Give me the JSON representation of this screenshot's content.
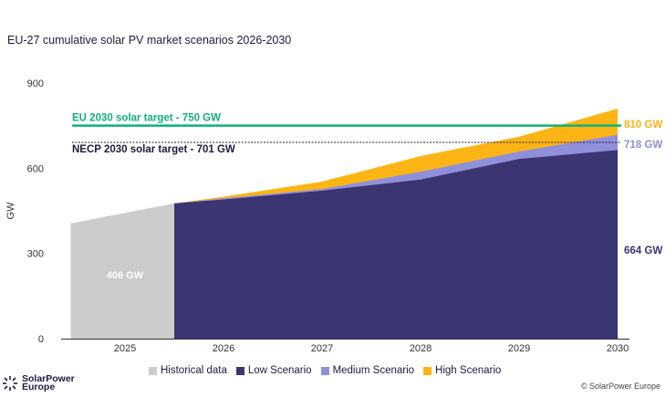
{
  "title": "EU-27 cumulative solar PV market scenarios 2026-2030",
  "chart_data": {
    "type": "area",
    "title": "EU-27 cumulative solar PV market scenarios 2026-2030",
    "ylabel": "GW",
    "xlabel": "",
    "ylim": [
      0,
      900
    ],
    "yticks": [
      "0",
      "300",
      "600",
      "900"
    ],
    "categories": [
      "2025",
      "2026",
      "2027",
      "2028",
      "2029",
      "2030"
    ],
    "grid": false,
    "legend_position": "bottom",
    "historical": {
      "name": "Historical data",
      "x": [
        2024.45,
        2025.5
      ],
      "values": [
        406,
        476
      ],
      "label": "406 GW",
      "color": "#cccccc"
    },
    "scenario_x": [
      2025.5,
      2026,
      2027,
      2028,
      2029,
      2030
    ],
    "series": [
      {
        "name": "Low Scenario",
        "values": [
          476,
          490,
          521,
          560,
          633,
          664
        ],
        "color": "#3b3572",
        "end_label": "664 GW"
      },
      {
        "name": "Medium Scenario",
        "values": [
          476,
          494,
          527,
          588,
          659,
          718
        ],
        "color": "#9090da",
        "end_label": "718 GW"
      },
      {
        "name": "High Scenario",
        "values": [
          476,
          500,
          553,
          643,
          711,
          810
        ],
        "color": "#fdb515",
        "end_label": "810 GW"
      }
    ],
    "reference_lines": [
      {
        "label": "EU 2030 solar target - 750 GW",
        "value": 750,
        "color": "#10b07a",
        "style": "solid"
      },
      {
        "label": "NECP 2030 solar target - 701 GW",
        "value": 701,
        "color": "#1e1b3a",
        "style": "dashed"
      }
    ]
  },
  "logo": {
    "text_line1": "SolarPower",
    "text_line2": "Europe"
  },
  "copyright": "© SolarPower Europe"
}
